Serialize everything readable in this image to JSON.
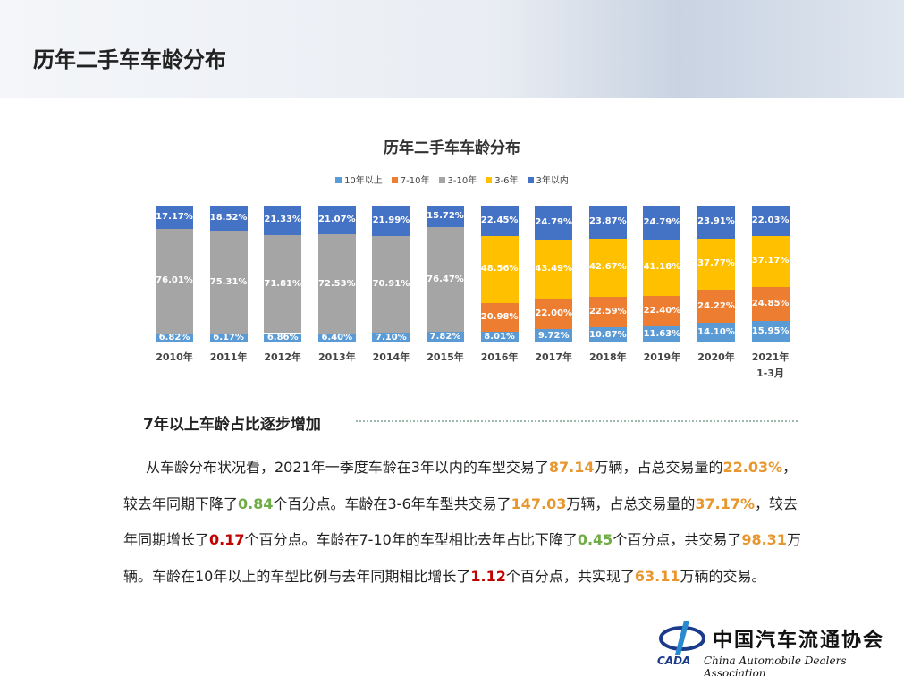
{
  "header": {
    "title": "历年二手车车龄分布"
  },
  "chart_data": {
    "type": "stacked-bar",
    "title": "历年二手车车龄分布",
    "legend": "top",
    "ylim": [
      0,
      100
    ],
    "categories": [
      "2010年",
      "2011年",
      "2012年",
      "2013年",
      "2014年",
      "2015年",
      "2016年",
      "2017年",
      "2018年",
      "2019年",
      "2020年",
      "2021年\n1-3月"
    ],
    "series": [
      {
        "name": "10年以上",
        "color": "#5b9bd5",
        "values": [
          6.82,
          6.17,
          6.86,
          6.4,
          7.1,
          7.82,
          8.01,
          9.72,
          10.87,
          11.63,
          14.1,
          15.95
        ],
        "value_labels": [
          "6.82%",
          "6.17%",
          "6.86%",
          "6.40%",
          "7.10%",
          "7.82%",
          "8.01%",
          "9.72%",
          "10.87%",
          "11.63%",
          "14.10%",
          "15.95%"
        ]
      },
      {
        "name": "7-10年",
        "color": "#ed7d31",
        "values": [
          null,
          null,
          null,
          null,
          null,
          null,
          20.98,
          22.0,
          22.59,
          22.4,
          24.22,
          24.85
        ],
        "value_labels": [
          null,
          null,
          null,
          null,
          null,
          null,
          "20.98%",
          "22.00%",
          "22.59%",
          "22.40%",
          "24.22%",
          "24.85%"
        ]
      },
      {
        "name": "3-10年",
        "color": "#a5a5a5",
        "values": [
          76.01,
          75.31,
          71.81,
          72.53,
          70.91,
          76.47,
          null,
          null,
          null,
          null,
          null,
          null
        ],
        "value_labels": [
          "76.01%",
          "75.31%",
          "71.81%",
          "72.53%",
          "70.91%",
          "76.47%",
          null,
          null,
          null,
          null,
          null,
          null
        ]
      },
      {
        "name": "3-6年",
        "color": "#ffc000",
        "values": [
          null,
          null,
          null,
          null,
          null,
          null,
          48.56,
          43.49,
          42.67,
          41.18,
          37.77,
          37.17
        ],
        "value_labels": [
          null,
          null,
          null,
          null,
          null,
          null,
          "48.56%",
          "43.49%",
          "42.67%",
          "41.18%",
          "37.77%",
          "37.17%"
        ]
      },
      {
        "name": "3年以内",
        "color": "#4472c4",
        "values": [
          17.17,
          18.52,
          21.33,
          21.07,
          21.99,
          15.72,
          22.45,
          24.79,
          23.87,
          24.79,
          23.91,
          22.03
        ],
        "value_labels": [
          "17.17%",
          "18.52%",
          "21.33%",
          "21.07%",
          "21.99%",
          "15.72%",
          "22.45%",
          "24.79%",
          "23.87%",
          "24.79%",
          "23.91%",
          "22.03%"
        ]
      }
    ]
  },
  "section": {
    "heading": "7年以上车龄占比逐步增加",
    "runs": [
      {
        "text": "从车龄分布状况看，2021年一季度车龄在3年以内的车型交易了"
      },
      {
        "text": "87.14",
        "color": "#e8962e"
      },
      {
        "text": "万辆，占总交易量的"
      },
      {
        "text": "22.03%",
        "color": "#e8962e"
      },
      {
        "text": "，较去年同期下降了"
      },
      {
        "text": "0.84",
        "color": "#70ad47"
      },
      {
        "text": "个百分点。车龄在3-6年车型共交易了"
      },
      {
        "text": "147.03",
        "color": "#e8962e"
      },
      {
        "text": "万辆，占总交易量的"
      },
      {
        "text": "37.17%",
        "color": "#e8962e"
      },
      {
        "text": "，较去年同期增长了"
      },
      {
        "text": "0.17",
        "color": "#c00000"
      },
      {
        "text": "个百分点。车龄在7-10年的车型相比去年占比下降了"
      },
      {
        "text": "0.45",
        "color": "#70ad47"
      },
      {
        "text": "个百分点，共交易了"
      },
      {
        "text": "98.31",
        "color": "#e8962e"
      },
      {
        "text": "万辆。车龄在10年以上的车型比例与去年同期相比增长了"
      },
      {
        "text": "1.12",
        "color": "#c00000"
      },
      {
        "text": "个百分点，共实现了"
      },
      {
        "text": "63.11",
        "color": "#e8962e"
      },
      {
        "text": "万辆的交易。"
      }
    ]
  },
  "logo": {
    "abbr": "CADA",
    "name": "中国汽车流通协会",
    "english": "China Automobile Dealers Association"
  }
}
